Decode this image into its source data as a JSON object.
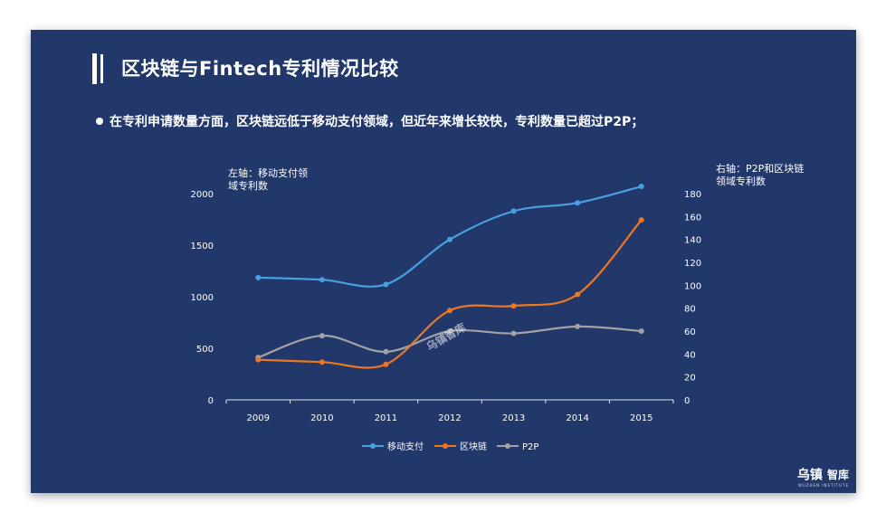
{
  "title": "区块链与Fintech专利情况比较",
  "bullet": "在专利申请数量方面，区块链远低于移动支付领域，但近年来增长较快，专利数量已超过P2P；",
  "logo": {
    "mark": "乌镇",
    "name": "智库",
    "sub": "WUZHEN INSTITUTE"
  },
  "watermark": "乌镇智库",
  "chart_data": {
    "type": "line",
    "categories": [
      "2009",
      "2010",
      "2011",
      "2012",
      "2013",
      "2014",
      "2015"
    ],
    "left_axis": {
      "label_lines": [
        "左轴：移动支付领",
        "域专利数"
      ],
      "ylim": [
        0,
        2000
      ],
      "ticks": [
        "0",
        "500",
        "1000",
        "1500",
        "2000"
      ]
    },
    "right_axis": {
      "label_lines": [
        "右轴：P2P和区块链",
        "领域专利数"
      ],
      "ylim": [
        0,
        180
      ],
      "ticks": [
        "0",
        "20",
        "40",
        "60",
        "80",
        "100",
        "120",
        "140",
        "160",
        "180"
      ]
    },
    "series": [
      {
        "name": "移动支付",
        "axis": "left",
        "color": "#4a9fe3",
        "values": [
          1185,
          1165,
          1120,
          1555,
          1830,
          1910,
          2070
        ]
      },
      {
        "name": "区块链",
        "axis": "right",
        "color": "#ee7722",
        "values": [
          35,
          33,
          31,
          78,
          82,
          92,
          157
        ]
      },
      {
        "name": "P2P",
        "axis": "right",
        "color": "#a3a3a3",
        "values": [
          37,
          56,
          42,
          60,
          58,
          64,
          60
        ]
      }
    ],
    "legend": "bottom"
  }
}
